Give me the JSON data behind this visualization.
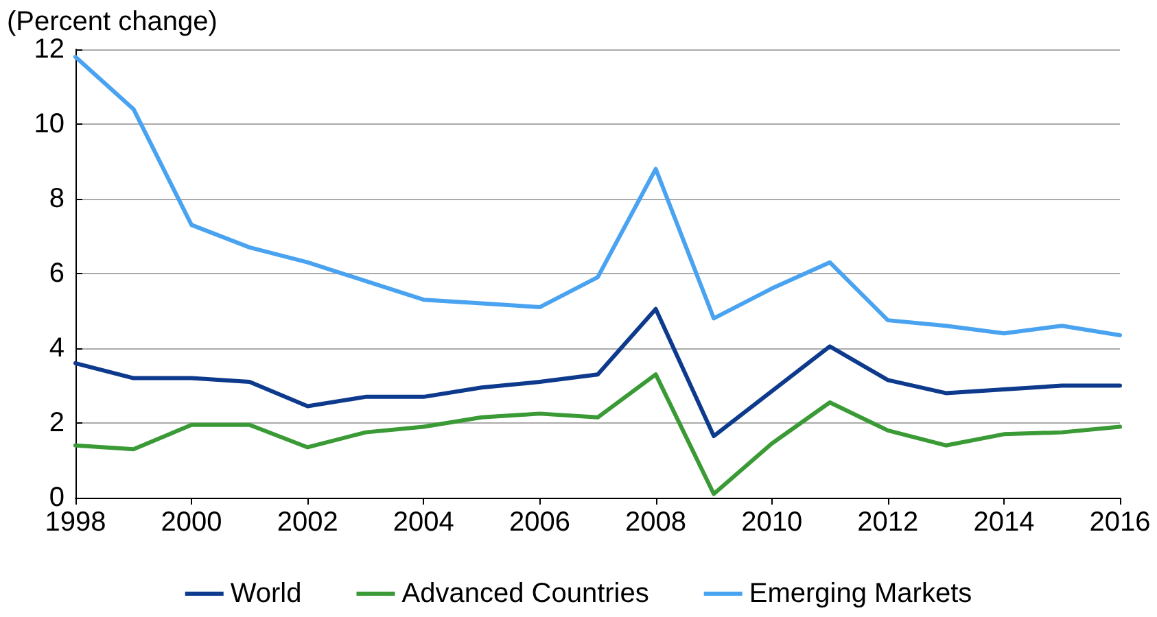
{
  "chart_data": {
    "type": "line",
    "ylabel": "(Percent change)",
    "x": [
      1998,
      1999,
      2000,
      2001,
      2002,
      2003,
      2004,
      2005,
      2006,
      2007,
      2008,
      2009,
      2010,
      2011,
      2012,
      2013,
      2014,
      2015,
      2016
    ],
    "series": [
      {
        "name": "World",
        "color": "#0d3a8c",
        "values": [
          3.6,
          3.2,
          3.2,
          3.1,
          2.45,
          2.7,
          2.7,
          2.95,
          3.1,
          3.3,
          5.05,
          1.65,
          2.85,
          4.05,
          3.15,
          2.8,
          2.9,
          3.0,
          3.0
        ]
      },
      {
        "name": "Advanced Countries",
        "color": "#3a9a35",
        "values": [
          1.4,
          1.3,
          1.95,
          1.95,
          1.35,
          1.75,
          1.9,
          2.15,
          2.25,
          2.15,
          3.3,
          0.1,
          1.45,
          2.55,
          1.8,
          1.4,
          1.7,
          1.75,
          1.9
        ]
      },
      {
        "name": "Emerging Markets",
        "color": "#4aa3f0",
        "values": [
          11.8,
          10.4,
          7.3,
          6.7,
          6.3,
          5.8,
          5.3,
          5.2,
          5.1,
          5.9,
          8.8,
          4.8,
          5.6,
          6.3,
          4.75,
          4.6,
          4.4,
          4.6,
          4.35
        ]
      }
    ],
    "xlim": [
      1998,
      2016
    ],
    "xticks": [
      1998,
      2000,
      2002,
      2004,
      2006,
      2008,
      2010,
      2012,
      2014,
      2016
    ],
    "ylim": [
      0,
      12
    ],
    "yticks": [
      0,
      2,
      4,
      6,
      8,
      10,
      12
    ],
    "grid": "y",
    "legend": "bottom",
    "marker": "none",
    "line_style": "solid"
  }
}
